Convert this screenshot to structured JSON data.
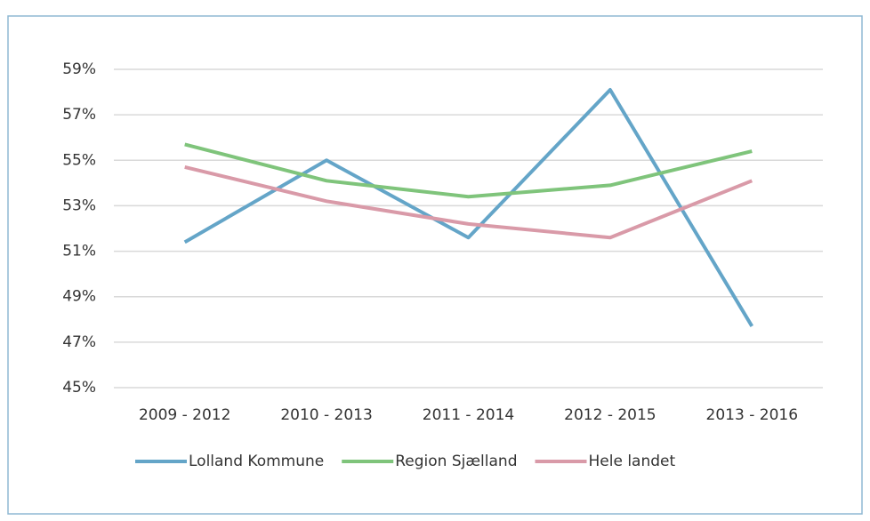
{
  "chart_data": {
    "type": "line",
    "categories": [
      "2009 - 2012",
      "2010 - 2013",
      "2011 - 2014",
      "2012 - 2015",
      "2013 - 2016"
    ],
    "series": [
      {
        "name": "Lolland Kommune",
        "color": "#64a5c8",
        "values": [
          51.4,
          55.0,
          51.6,
          58.1,
          47.7
        ]
      },
      {
        "name": "Region Sjælland",
        "color": "#7fc47b",
        "values": [
          55.7,
          54.1,
          53.4,
          53.9,
          55.4
        ]
      },
      {
        "name": "Hele landet",
        "color": "#d99aa8",
        "values": [
          54.7,
          53.2,
          52.2,
          51.6,
          54.1
        ]
      }
    ],
    "ylim": [
      45,
      59
    ],
    "yticks": [
      {
        "value": 45,
        "label": "45%"
      },
      {
        "value": 47,
        "label": "47%"
      },
      {
        "value": 49,
        "label": "49%"
      },
      {
        "value": 51,
        "label": "51%"
      },
      {
        "value": 53,
        "label": "53%"
      },
      {
        "value": 55,
        "label": "55%"
      },
      {
        "value": 57,
        "label": "57%"
      },
      {
        "value": 59,
        "label": "59%"
      }
    ],
    "grid": true,
    "legend": "bottom"
  }
}
